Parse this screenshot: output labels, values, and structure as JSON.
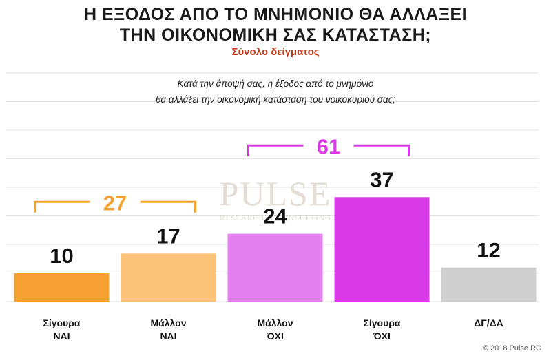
{
  "header": {
    "title_line1": "Η ΕΞΟΔΟΣ ΑΠΟ ΤΟ ΜΝΗΜΟΝΙΟ ΘΑ ΑΛΛΑΞΕΙ",
    "title_line2": "ΤΗΝ ΟΙΚΟΝΟΜΙΚΗ ΣΑΣ ΚΑΤΑΣΤΑΣΗ;",
    "subtitle": "Σύνολο δείγματος",
    "question_line1": "Κατά την άποψή σας, η έξοδος από το μνημόνιο",
    "question_line2": "θα αλλάξει την οικονομική κατάσταση του νοικοκυριού σας;"
  },
  "watermark": {
    "brand": "PULSE",
    "tagline": "RESEARCH & CONSULTING"
  },
  "footer": {
    "copyright": "© 2018 Pulse RC"
  },
  "colors": {
    "yes": "#f5a030",
    "yes_light": "#fbc37a",
    "no_light": "#e57ef0",
    "no": "#d93ae8",
    "dk": "#cfcfcf",
    "grid": "#e3e3e3"
  },
  "chart_data": {
    "type": "bar",
    "categories": [
      [
        "Σίγουρα",
        "ΝΑΙ"
      ],
      [
        "Μάλλον",
        "ΝΑΙ"
      ],
      [
        "Μάλλον",
        "ΌΧΙ"
      ],
      [
        "Σίγουρα",
        "ΌΧΙ"
      ],
      [
        "ΔΓ/ΔΑ"
      ]
    ],
    "values": [
      10,
      17,
      24,
      37,
      12
    ],
    "bar_colors": [
      "#f5a030",
      "#fbc37a",
      "#e57ef0",
      "#d93ae8",
      "#cfcfcf"
    ],
    "ylim": [
      0,
      100
    ],
    "grid": true,
    "group_totals": [
      {
        "value": 27,
        "from": 0,
        "to": 1,
        "color": "#f5a030"
      },
      {
        "value": 61,
        "from": 2,
        "to": 3,
        "color": "#d93ae8"
      }
    ]
  }
}
